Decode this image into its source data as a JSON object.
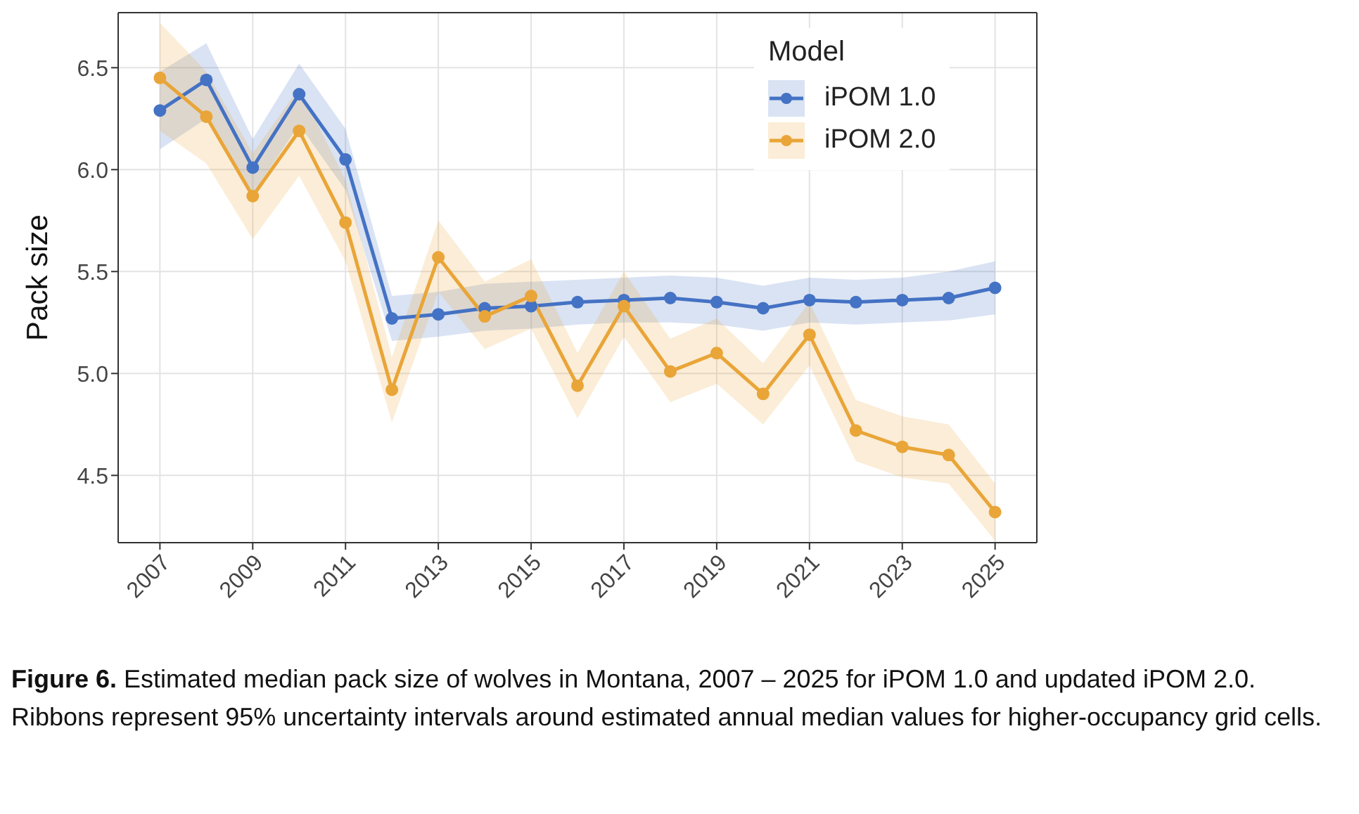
{
  "chart_data": {
    "type": "line",
    "x": [
      2007,
      2008,
      2009,
      2010,
      2011,
      2012,
      2013,
      2014,
      2015,
      2016,
      2017,
      2018,
      2019,
      2020,
      2021,
      2022,
      2023,
      2024,
      2025
    ],
    "series": [
      {
        "name": "iPOM 1.0",
        "color": "#4472c4",
        "values": [
          6.29,
          6.44,
          6.01,
          6.37,
          6.05,
          5.27,
          5.29,
          5.32,
          5.33,
          5.35,
          5.36,
          5.37,
          5.35,
          5.32,
          5.36,
          5.35,
          5.36,
          5.37,
          5.42
        ],
        "lower": [
          6.1,
          6.25,
          5.88,
          6.22,
          5.9,
          5.16,
          5.18,
          5.21,
          5.22,
          5.24,
          5.25,
          5.25,
          5.24,
          5.21,
          5.25,
          5.24,
          5.25,
          5.26,
          5.29
        ],
        "upper": [
          6.48,
          6.62,
          6.15,
          6.52,
          6.2,
          5.38,
          5.4,
          5.44,
          5.45,
          5.46,
          5.47,
          5.48,
          5.47,
          5.43,
          5.47,
          5.46,
          5.47,
          5.5,
          5.55
        ]
      },
      {
        "name": "iPOM 2.0",
        "color": "#e9a538",
        "values": [
          6.45,
          6.26,
          5.87,
          6.19,
          5.74,
          4.92,
          5.57,
          5.28,
          5.38,
          4.94,
          5.33,
          5.01,
          5.1,
          4.9,
          5.19,
          4.72,
          4.64,
          4.6,
          4.32
        ],
        "lower": [
          6.19,
          6.03,
          5.66,
          5.97,
          5.55,
          4.76,
          5.4,
          5.12,
          5.22,
          4.78,
          5.18,
          4.86,
          4.95,
          4.75,
          5.04,
          4.57,
          4.49,
          4.46,
          4.18
        ],
        "upper": [
          6.72,
          6.48,
          6.08,
          6.4,
          5.95,
          5.08,
          5.75,
          5.45,
          5.56,
          5.1,
          5.5,
          5.17,
          5.27,
          5.05,
          5.35,
          4.87,
          4.79,
          4.75,
          4.46
        ]
      }
    ],
    "ylabel": "Pack size",
    "legend_title": "Model",
    "xlim": [
      2006.1,
      2025.9
    ],
    "xticks": [
      2007,
      2009,
      2011,
      2013,
      2015,
      2017,
      2019,
      2021,
      2023,
      2025
    ],
    "ylim": [
      4.17,
      6.77
    ],
    "yticks": [
      {
        "value": 4.5,
        "label": "4.5"
      },
      {
        "value": 5.0,
        "label": "5.0"
      },
      {
        "value": 5.5,
        "label": "5.5"
      },
      {
        "value": 6.0,
        "label": "6.0"
      },
      {
        "value": 6.5,
        "label": "6.5"
      }
    ],
    "grid": true,
    "legend": "top right",
    "marker": "circle",
    "line_style": "solid",
    "annotations": [
      "Figure 6. Estimated median pack size of wolves in Montana, 2007 – 2025 for iPOM 1.0 and updated iPOM 2.0. Ribbons represent 95% uncertainty intervals around estimated annual median values for higher-occupancy grid cells."
    ]
  }
}
